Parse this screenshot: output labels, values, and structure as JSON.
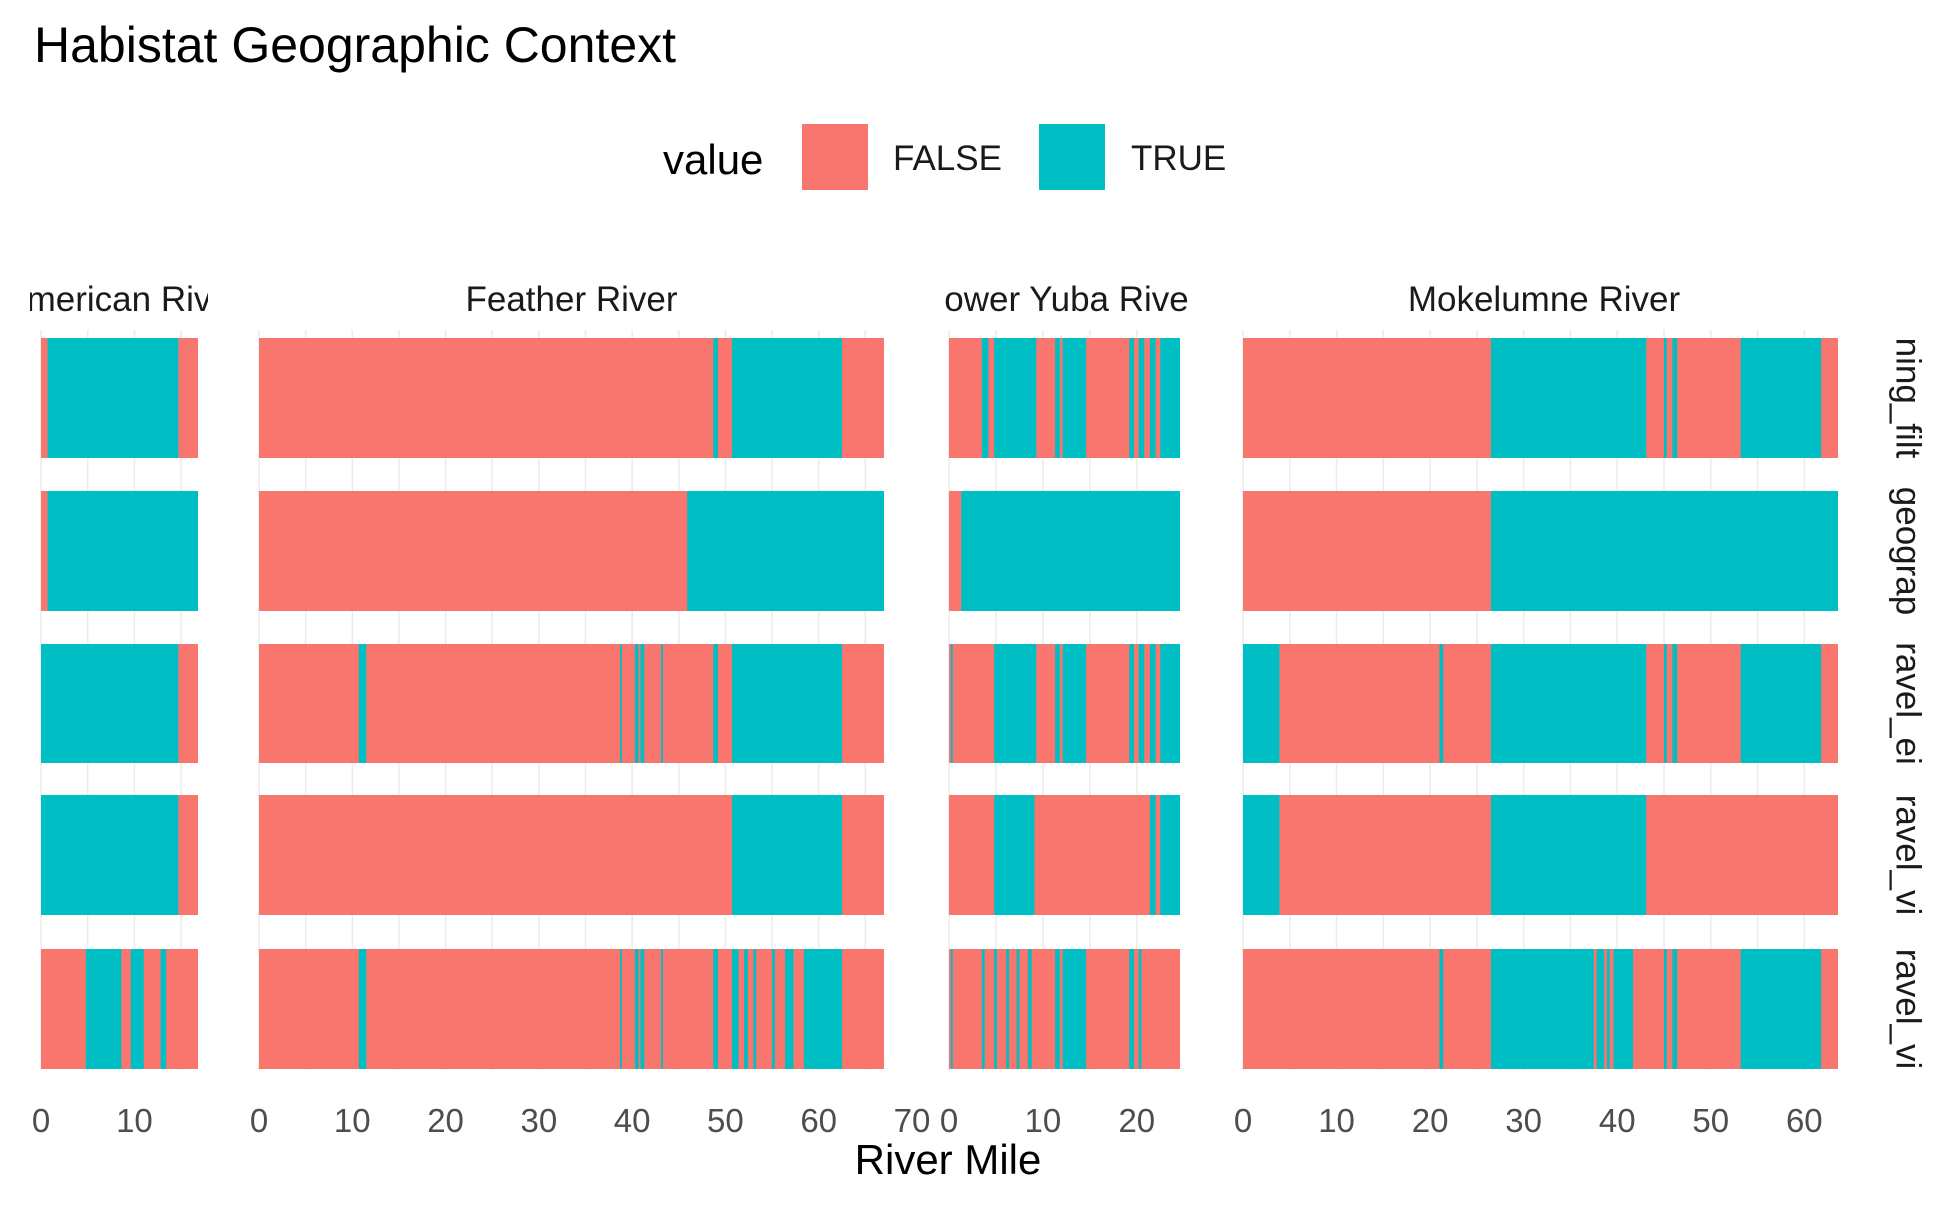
{
  "chart_data": {
    "type": "bar",
    "title": "Habistat Geographic Context",
    "xlabel": "River Mile",
    "ylabel": "",
    "legend": {
      "title": "value",
      "position": "top",
      "entries": [
        {
          "label": "FALSE",
          "color": "#F8766D"
        },
        {
          "label": "TRUE",
          "color": "#00BFC4"
        }
      ]
    },
    "colors": {
      "FALSE": "#F8766D",
      "TRUE": "#00BFC4"
    },
    "grid": true,
    "panels": [
      {
        "name": "merican Riv",
        "xlim": [
          0,
          16.8
        ],
        "ticks": [
          0,
          10
        ]
      },
      {
        "name": "Feather River",
        "xlim": [
          0,
          67
        ],
        "ticks": [
          0,
          10,
          20,
          30,
          40,
          50,
          60,
          70
        ]
      },
      {
        "name": "ower Yuba Rive",
        "xlim": [
          0,
          24.6
        ],
        "ticks": [
          0,
          10,
          20
        ]
      },
      {
        "name": "Mokelumne River",
        "xlim": [
          0,
          63.6
        ],
        "ticks": [
          0,
          10,
          20,
          30,
          40,
          50,
          60
        ]
      }
    ],
    "rows": [
      {
        "name": "ning_filt"
      },
      {
        "name": "geograp"
      },
      {
        "name": "ravel_ei"
      },
      {
        "name": "ravel_vi"
      },
      {
        "name": "ravel_vi"
      }
    ],
    "true_segments": [
      [
        [
          [
            0.7,
            14.7
          ]
        ],
        [
          [
            0.7,
            16.8
          ]
        ],
        [
          [
            0,
            14.7
          ]
        ],
        [
          [
            0,
            14.7
          ]
        ],
        [
          [
            4.8,
            8.6
          ],
          [
            9.6,
            11
          ],
          [
            12.8,
            13.4
          ]
        ]
      ],
      [
        [
          [
            48.7,
            49.2
          ],
          [
            50.7,
            62.5
          ]
        ],
        [
          [
            45.9,
            67
          ]
        ],
        [
          [
            10.7,
            11.5
          ],
          [
            38.7,
            38.9
          ],
          [
            40.3,
            40.7
          ],
          [
            40.9,
            41.3
          ],
          [
            43.1,
            43.3
          ],
          [
            48.7,
            49.2
          ],
          [
            50.7,
            62.5
          ]
        ],
        [
          [
            50.7,
            62.5
          ]
        ],
        [
          [
            10.7,
            11.5
          ],
          [
            38.7,
            38.9
          ],
          [
            40.3,
            40.7
          ],
          [
            40.9,
            41.3
          ],
          [
            43.1,
            43.3
          ],
          [
            48.7,
            49.2
          ],
          [
            50.7,
            51.4
          ],
          [
            52,
            52.4
          ],
          [
            53,
            53.3
          ],
          [
            55,
            55.3
          ],
          [
            56.4,
            57.3
          ],
          [
            58.4,
            62.5
          ]
        ]
      ],
      [
        [
          [
            3.5,
            4.2
          ],
          [
            4.8,
            9.3
          ],
          [
            11.3,
            11.8
          ],
          [
            12.1,
            14.6
          ],
          [
            19.2,
            19.7
          ],
          [
            20.2,
            20.8
          ],
          [
            21.4,
            22
          ],
          [
            22.5,
            24.6
          ]
        ],
        [
          [
            1.3,
            24.6
          ]
        ],
        [
          [
            0.2,
            0.4
          ],
          [
            4.8,
            9.3
          ],
          [
            11.3,
            11.8
          ],
          [
            12.1,
            14.6
          ],
          [
            19.2,
            19.7
          ],
          [
            20.2,
            20.8
          ],
          [
            21.4,
            22
          ],
          [
            22.5,
            24.6
          ]
        ],
        [
          [
            4.8,
            9.1
          ],
          [
            21.4,
            22
          ],
          [
            22.5,
            24.6
          ]
        ],
        [
          [
            0.2,
            0.4
          ],
          [
            3.5,
            3.8
          ],
          [
            4.8,
            5.1
          ],
          [
            6.1,
            6.4
          ],
          [
            7.2,
            7.5
          ],
          [
            8.4,
            8.8
          ],
          [
            11.3,
            11.8
          ],
          [
            12.1,
            14.6
          ],
          [
            19.2,
            19.7
          ],
          [
            20.2,
            20.5
          ]
        ]
      ],
      [
        [
          [
            26.5,
            43.1
          ],
          [
            45,
            45.3
          ],
          [
            45.9,
            46.4
          ],
          [
            53.2,
            61.8
          ]
        ],
        [
          [
            26.5,
            63.6
          ]
        ],
        [
          [
            0,
            3.9
          ],
          [
            21,
            21.4
          ],
          [
            26.5,
            43.1
          ],
          [
            45,
            45.3
          ],
          [
            45.9,
            46.4
          ],
          [
            53.2,
            61.8
          ]
        ],
        [
          [
            0,
            3.9
          ],
          [
            26.5,
            43.1
          ]
        ],
        [
          [
            21,
            21.4
          ],
          [
            26.5,
            37.5
          ],
          [
            37.8,
            38.6
          ],
          [
            38.9,
            39.2
          ],
          [
            39.6,
            41.7
          ],
          [
            45,
            45.3
          ],
          [
            45.9,
            46.4
          ],
          [
            53.2,
            61.8
          ]
        ]
      ]
    ]
  }
}
